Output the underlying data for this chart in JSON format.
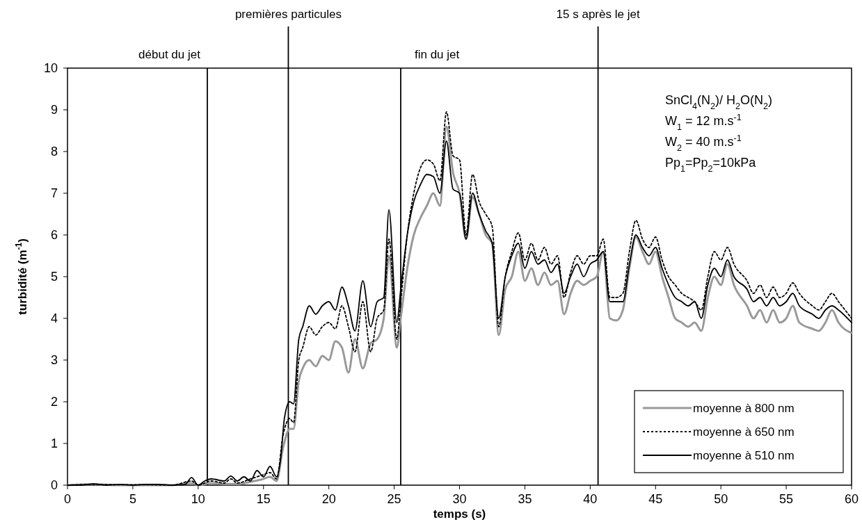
{
  "chart_data": {
    "type": "line",
    "xlabel": "temps (s)",
    "ylabel": "turbidité (m$^{-1}$)",
    "xlim": [
      0,
      60
    ],
    "xticks": [
      0,
      5,
      10,
      15,
      20,
      25,
      30,
      35,
      40,
      45,
      50,
      55,
      60
    ],
    "ylim": [
      0,
      10
    ],
    "yticks": [
      0,
      1,
      2,
      3,
      4,
      5,
      6,
      7,
      8,
      9,
      10
    ],
    "grid": false,
    "legend": "bottom right",
    "marker": "none",
    "annotations": [
      "SnCl$_{4}$(N$_{2}$)/ H$_{2}$O(N$_{2}$)",
      "W$_{1}$ = 12 m.s$^{-1}$",
      "W$_{2}$ = 40 m.s$^{-1}$",
      "Pp$_{1}$=Pp$_{2}$=10kPa"
    ],
    "ref_lines": [
      {
        "axis": "x",
        "value": 10.7,
        "label": "début du jet",
        "color": "#000000"
      },
      {
        "axis": "x",
        "value": 16.9,
        "label": "premières particules",
        "color": "#000000"
      },
      {
        "axis": "x",
        "value": 25.5,
        "label": "fin du jet",
        "color": "#000000"
      },
      {
        "axis": "x",
        "value": 40.6,
        "label": "15 s après le jet",
        "color": "#000000"
      }
    ],
    "series": [
      {
        "name": "moyenne  à 800 nm",
        "color": "#999999",
        "line_style": "solid",
        "x": [
          0,
          2,
          4,
          6,
          8,
          9.5,
          10,
          11,
          12,
          13,
          14,
          15,
          15.5,
          16,
          16.5,
          17,
          17.3,
          17.7,
          18,
          18.5,
          19,
          19.5,
          20,
          20.5,
          21,
          21.5,
          22,
          22.6,
          23.2,
          23.7,
          24.2,
          24.6,
          25.2,
          25.5,
          26,
          26.5,
          27,
          27.5,
          28,
          28.5,
          29,
          29.5,
          30,
          30.5,
          31,
          31.5,
          32,
          32.5,
          33,
          33.5,
          34,
          34.5,
          35,
          35.5,
          36,
          36.5,
          37,
          37.5,
          38,
          38.5,
          39,
          39.5,
          40,
          40.5,
          41,
          41.5,
          42,
          42.5,
          43,
          43.5,
          44,
          44.5,
          45,
          45.5,
          46,
          46.5,
          47,
          47.5,
          48,
          48.5,
          49,
          49.5,
          50,
          50.5,
          51,
          52,
          52.5,
          53,
          53.5,
          54,
          54.5,
          55,
          55.5,
          56,
          57,
          57.5,
          58,
          58.5,
          59,
          60
        ],
        "values": [
          0,
          0.02,
          0,
          0,
          0,
          0.05,
          0,
          0.05,
          0.03,
          0.03,
          0.08,
          0.15,
          0.2,
          0.1,
          0.9,
          1.35,
          1.35,
          2.5,
          2.8,
          3.0,
          2.85,
          3.1,
          3.0,
          3.45,
          3.3,
          2.7,
          3.5,
          2.8,
          3.4,
          3.5,
          4.0,
          5.5,
          3.3,
          4.0,
          5.2,
          6.0,
          6.4,
          6.7,
          7.0,
          6.7,
          8.6,
          7.5,
          7.0,
          5.9,
          6.9,
          6.5,
          6.0,
          5.8,
          3.6,
          4.7,
          5.0,
          5.6,
          4.9,
          5.2,
          4.8,
          5.1,
          4.8,
          4.9,
          4.1,
          4.6,
          4.9,
          4.8,
          4.9,
          5.0,
          5.6,
          4.0,
          3.95,
          4.2,
          5.2,
          5.95,
          5.6,
          5.3,
          5.6,
          5.0,
          4.5,
          4.0,
          3.9,
          3.8,
          3.9,
          3.7,
          4.5,
          5.0,
          4.8,
          5.3,
          4.8,
          4.3,
          4.0,
          4.2,
          3.9,
          4.2,
          3.9,
          4.0,
          4.3,
          3.9,
          3.75,
          3.7,
          3.9,
          4.2,
          3.9,
          3.65
        ]
      },
      {
        "name": "moyenne à 650 nm",
        "color": "#000000",
        "line_style": "dotted",
        "x": [
          0,
          2,
          4,
          6,
          8,
          9.5,
          10,
          11,
          12,
          12.5,
          13,
          14,
          15,
          15.5,
          16,
          16.5,
          17,
          17.3,
          17.7,
          18,
          18.5,
          19,
          19.5,
          20,
          20.5,
          21,
          21.5,
          22,
          22.6,
          23.2,
          23.7,
          24.2,
          24.6,
          25.2,
          25.5,
          26,
          26.5,
          27,
          27.5,
          28,
          28.5,
          29,
          29.5,
          30,
          30.5,
          31,
          31.5,
          32,
          32.5,
          33,
          33.5,
          34,
          34.5,
          35,
          35.5,
          36,
          36.5,
          37,
          37.5,
          38,
          38.5,
          39,
          39.5,
          40,
          40.5,
          41,
          41.5,
          42,
          42.5,
          43,
          43.5,
          44,
          44.5,
          45,
          45.5,
          46,
          46.5,
          47,
          47.5,
          48,
          48.5,
          49,
          49.5,
          50,
          50.5,
          51,
          52,
          52.5,
          53,
          53.5,
          54,
          54.5,
          55,
          55.5,
          56,
          57,
          57.5,
          58,
          58.5,
          59,
          60
        ],
        "values": [
          0,
          0.02,
          0.01,
          0.01,
          0,
          0.1,
          0,
          0.1,
          0.05,
          0.15,
          0.05,
          0.15,
          0.25,
          0.3,
          0.15,
          1.2,
          1.6,
          1.5,
          3.0,
          3.3,
          3.8,
          3.6,
          3.8,
          3.9,
          3.75,
          4.3,
          3.8,
          3.2,
          4.4,
          3.2,
          4.0,
          4.2,
          5.9,
          3.5,
          4.4,
          6.0,
          7.0,
          7.6,
          7.8,
          7.7,
          7.3,
          8.95,
          7.9,
          7.8,
          6.0,
          7.45,
          6.8,
          6.5,
          6.2,
          3.8,
          5.0,
          5.6,
          6.05,
          5.4,
          5.8,
          5.4,
          5.7,
          5.3,
          5.5,
          4.5,
          5.1,
          5.5,
          5.3,
          5.5,
          5.5,
          5.9,
          4.5,
          4.5,
          4.6,
          5.6,
          6.35,
          5.9,
          5.7,
          5.95,
          5.4,
          5.0,
          4.8,
          4.6,
          4.5,
          4.4,
          4.2,
          5.0,
          5.6,
          5.4,
          5.7,
          5.3,
          4.9,
          4.6,
          4.8,
          4.5,
          4.75,
          4.5,
          4.6,
          4.85,
          4.6,
          4.3,
          4.2,
          4.4,
          4.6,
          4.4,
          4.0
        ]
      },
      {
        "name": "moyenne à 510 nm",
        "color": "#000000",
        "line_style": "solid",
        "x": [
          0,
          1,
          2,
          3,
          4,
          5,
          6,
          7,
          8,
          9,
          9.5,
          10,
          10.5,
          11,
          12,
          12.5,
          13,
          13.5,
          14,
          14.5,
          15,
          15.5,
          16,
          16.3,
          16.6,
          17,
          17.3,
          17.7,
          18,
          18.5,
          19,
          19.5,
          20,
          20.5,
          21,
          21.5,
          22,
          22.6,
          23.2,
          23.7,
          24.2,
          24.6,
          25.2,
          25.5,
          26,
          26.5,
          27,
          27.5,
          28,
          28.5,
          29,
          29.5,
          30,
          30.5,
          31,
          31.5,
          32,
          32.5,
          33,
          33.5,
          34,
          34.5,
          35,
          35.5,
          36,
          36.5,
          37,
          37.5,
          38,
          38.5,
          39,
          39.5,
          40,
          40.5,
          41,
          41.5,
          42,
          42.5,
          43,
          43.5,
          44,
          44.5,
          45,
          45.5,
          46,
          46.5,
          47,
          47.5,
          48,
          48.5,
          49,
          49.5,
          50,
          50.5,
          51,
          52,
          52.5,
          53,
          53.5,
          54,
          54.5,
          55,
          55.5,
          56,
          57,
          57.5,
          58,
          58.5,
          59,
          60
        ],
        "values": [
          0,
          0,
          0.03,
          0,
          0.02,
          0,
          0.02,
          0.02,
          0,
          0.02,
          0.18,
          0,
          0.1,
          0.15,
          0.1,
          0.22,
          0.1,
          0.2,
          0.1,
          0.35,
          0.2,
          0.45,
          0.2,
          0.6,
          1.6,
          2.0,
          1.95,
          3.5,
          3.8,
          4.3,
          4.1,
          4.3,
          4.4,
          4.2,
          4.75,
          4.3,
          3.7,
          4.9,
          3.8,
          4.4,
          4.5,
          6.6,
          3.9,
          4.7,
          6.0,
          6.8,
          7.2,
          7.45,
          7.4,
          7.0,
          8.25,
          7.1,
          7.0,
          5.9,
          7.0,
          6.5,
          6.1,
          5.8,
          4.0,
          5.0,
          5.5,
          5.8,
          5.2,
          5.6,
          5.3,
          5.4,
          5.1,
          5.3,
          4.6,
          5.0,
          5.3,
          5.0,
          5.3,
          5.4,
          5.6,
          4.4,
          4.4,
          4.4,
          5.3,
          6.0,
          5.7,
          5.5,
          5.7,
          5.2,
          4.8,
          4.5,
          4.4,
          4.3,
          4.4,
          4.0,
          4.8,
          5.2,
          5.0,
          5.4,
          5.0,
          4.7,
          4.4,
          4.5,
          4.3,
          4.5,
          4.3,
          4.4,
          4.6,
          4.3,
          4.1,
          4.0,
          4.2,
          4.3,
          4.2,
          3.9
        ]
      }
    ]
  }
}
